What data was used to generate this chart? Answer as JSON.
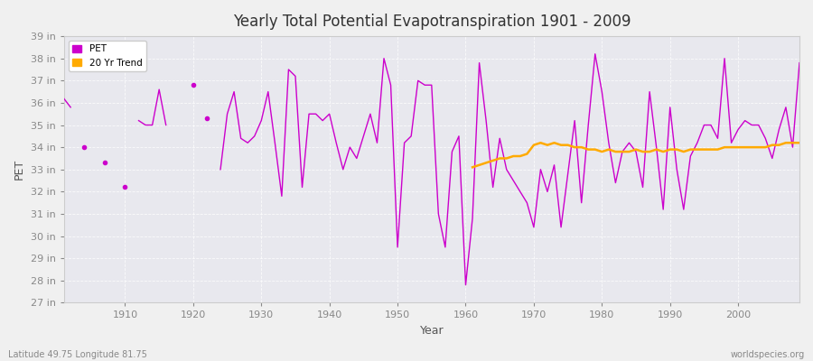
{
  "title": "Yearly Total Potential Evapotranspiration 1901 - 2009",
  "xlabel": "Year",
  "ylabel": "PET",
  "subtitle_left": "Latitude 49.75 Longitude 81.75",
  "subtitle_right": "worldspecies.org",
  "pet_color": "#cc00cc",
  "trend_color": "#ffaa00",
  "fig_bg_color": "#f0f0f0",
  "plot_bg_color": "#e8e8ee",
  "ylim": [
    27,
    39
  ],
  "ytick_labels": [
    "27 in",
    "28 in",
    "29 in",
    "30 in",
    "31 in",
    "32 in",
    "33 in",
    "34 in",
    "35 in",
    "36 in",
    "37 in",
    "38 in",
    "39 in"
  ],
  "ytick_values": [
    27,
    28,
    29,
    30,
    31,
    32,
    33,
    34,
    35,
    36,
    37,
    38,
    39
  ],
  "years": [
    1901,
    1902,
    1903,
    1904,
    1905,
    1906,
    1907,
    1908,
    1909,
    1910,
    1911,
    1912,
    1913,
    1914,
    1915,
    1916,
    1917,
    1918,
    1919,
    1920,
    1921,
    1922,
    1923,
    1924,
    1925,
    1926,
    1927,
    1928,
    1929,
    1930,
    1931,
    1932,
    1933,
    1934,
    1935,
    1936,
    1937,
    1938,
    1939,
    1940,
    1941,
    1942,
    1943,
    1944,
    1945,
    1946,
    1947,
    1948,
    1949,
    1950,
    1951,
    1952,
    1953,
    1954,
    1955,
    1956,
    1957,
    1958,
    1959,
    1960,
    1961,
    1962,
    1963,
    1964,
    1965,
    1966,
    1967,
    1968,
    1969,
    1970,
    1971,
    1972,
    1973,
    1974,
    1975,
    1976,
    1977,
    1978,
    1979,
    1980,
    1981,
    1982,
    1983,
    1984,
    1985,
    1986,
    1987,
    1988,
    1989,
    1990,
    1991,
    1992,
    1993,
    1994,
    1995,
    1996,
    1997,
    1998,
    1999,
    2000,
    2001,
    2002,
    2003,
    2004,
    2005,
    2006,
    2007,
    2008,
    2009
  ],
  "pet_values": [
    36.2,
    35.8,
    null,
    34.0,
    null,
    null,
    33.3,
    null,
    null,
    32.2,
    null,
    35.2,
    35.0,
    35.0,
    36.6,
    35.0,
    null,
    null,
    null,
    36.8,
    null,
    35.3,
    null,
    33.0,
    35.5,
    36.5,
    34.4,
    34.2,
    34.5,
    35.2,
    36.5,
    34.2,
    31.8,
    37.5,
    37.2,
    32.2,
    35.5,
    35.5,
    35.2,
    35.5,
    34.2,
    33.0,
    34.0,
    33.5,
    34.5,
    35.5,
    34.2,
    38.0,
    36.8,
    29.5,
    34.2,
    34.5,
    37.0,
    36.8,
    36.8,
    31.0,
    29.5,
    33.8,
    34.5,
    27.8,
    30.8,
    37.8,
    35.2,
    32.2,
    34.4,
    33.0,
    32.5,
    32.0,
    31.5,
    30.4,
    33.0,
    32.0,
    33.2,
    30.4,
    32.8,
    35.2,
    31.5,
    35.0,
    38.2,
    36.5,
    34.2,
    32.4,
    33.8,
    34.2,
    33.8,
    32.2,
    36.5,
    34.0,
    31.2,
    35.8,
    33.0,
    31.2,
    33.6,
    34.2,
    35.0,
    35.0,
    34.4,
    38.0,
    34.2,
    34.8,
    35.2,
    35.0,
    35.0,
    34.4,
    33.5,
    34.8,
    35.8,
    34.0,
    37.8
  ],
  "dot_year": 1907,
  "dot_value": 33.3,
  "trend_years": [
    1961,
    1962,
    1963,
    1964,
    1965,
    1966,
    1967,
    1968,
    1969,
    1970,
    1971,
    1972,
    1973,
    1974,
    1975,
    1976,
    1977,
    1978,
    1979,
    1980,
    1981,
    1982,
    1983,
    1984,
    1985,
    1986,
    1987,
    1988,
    1989,
    1990,
    1991,
    1992,
    1993,
    1994,
    1995,
    1996,
    1997,
    1998,
    1999,
    2000,
    2001,
    2002,
    2003,
    2004,
    2005,
    2006,
    2007,
    2008,
    2009
  ],
  "trend_values": [
    33.1,
    33.2,
    33.3,
    33.4,
    33.5,
    33.5,
    33.6,
    33.6,
    33.7,
    34.1,
    34.2,
    34.1,
    34.2,
    34.1,
    34.1,
    34.0,
    34.0,
    33.9,
    33.9,
    33.8,
    33.9,
    33.8,
    33.8,
    33.8,
    33.9,
    33.8,
    33.8,
    33.9,
    33.8,
    33.9,
    33.9,
    33.8,
    33.9,
    33.9,
    33.9,
    33.9,
    33.9,
    34.0,
    34.0,
    34.0,
    34.0,
    34.0,
    34.0,
    34.0,
    34.1,
    34.1,
    34.2,
    34.2,
    34.2
  ]
}
